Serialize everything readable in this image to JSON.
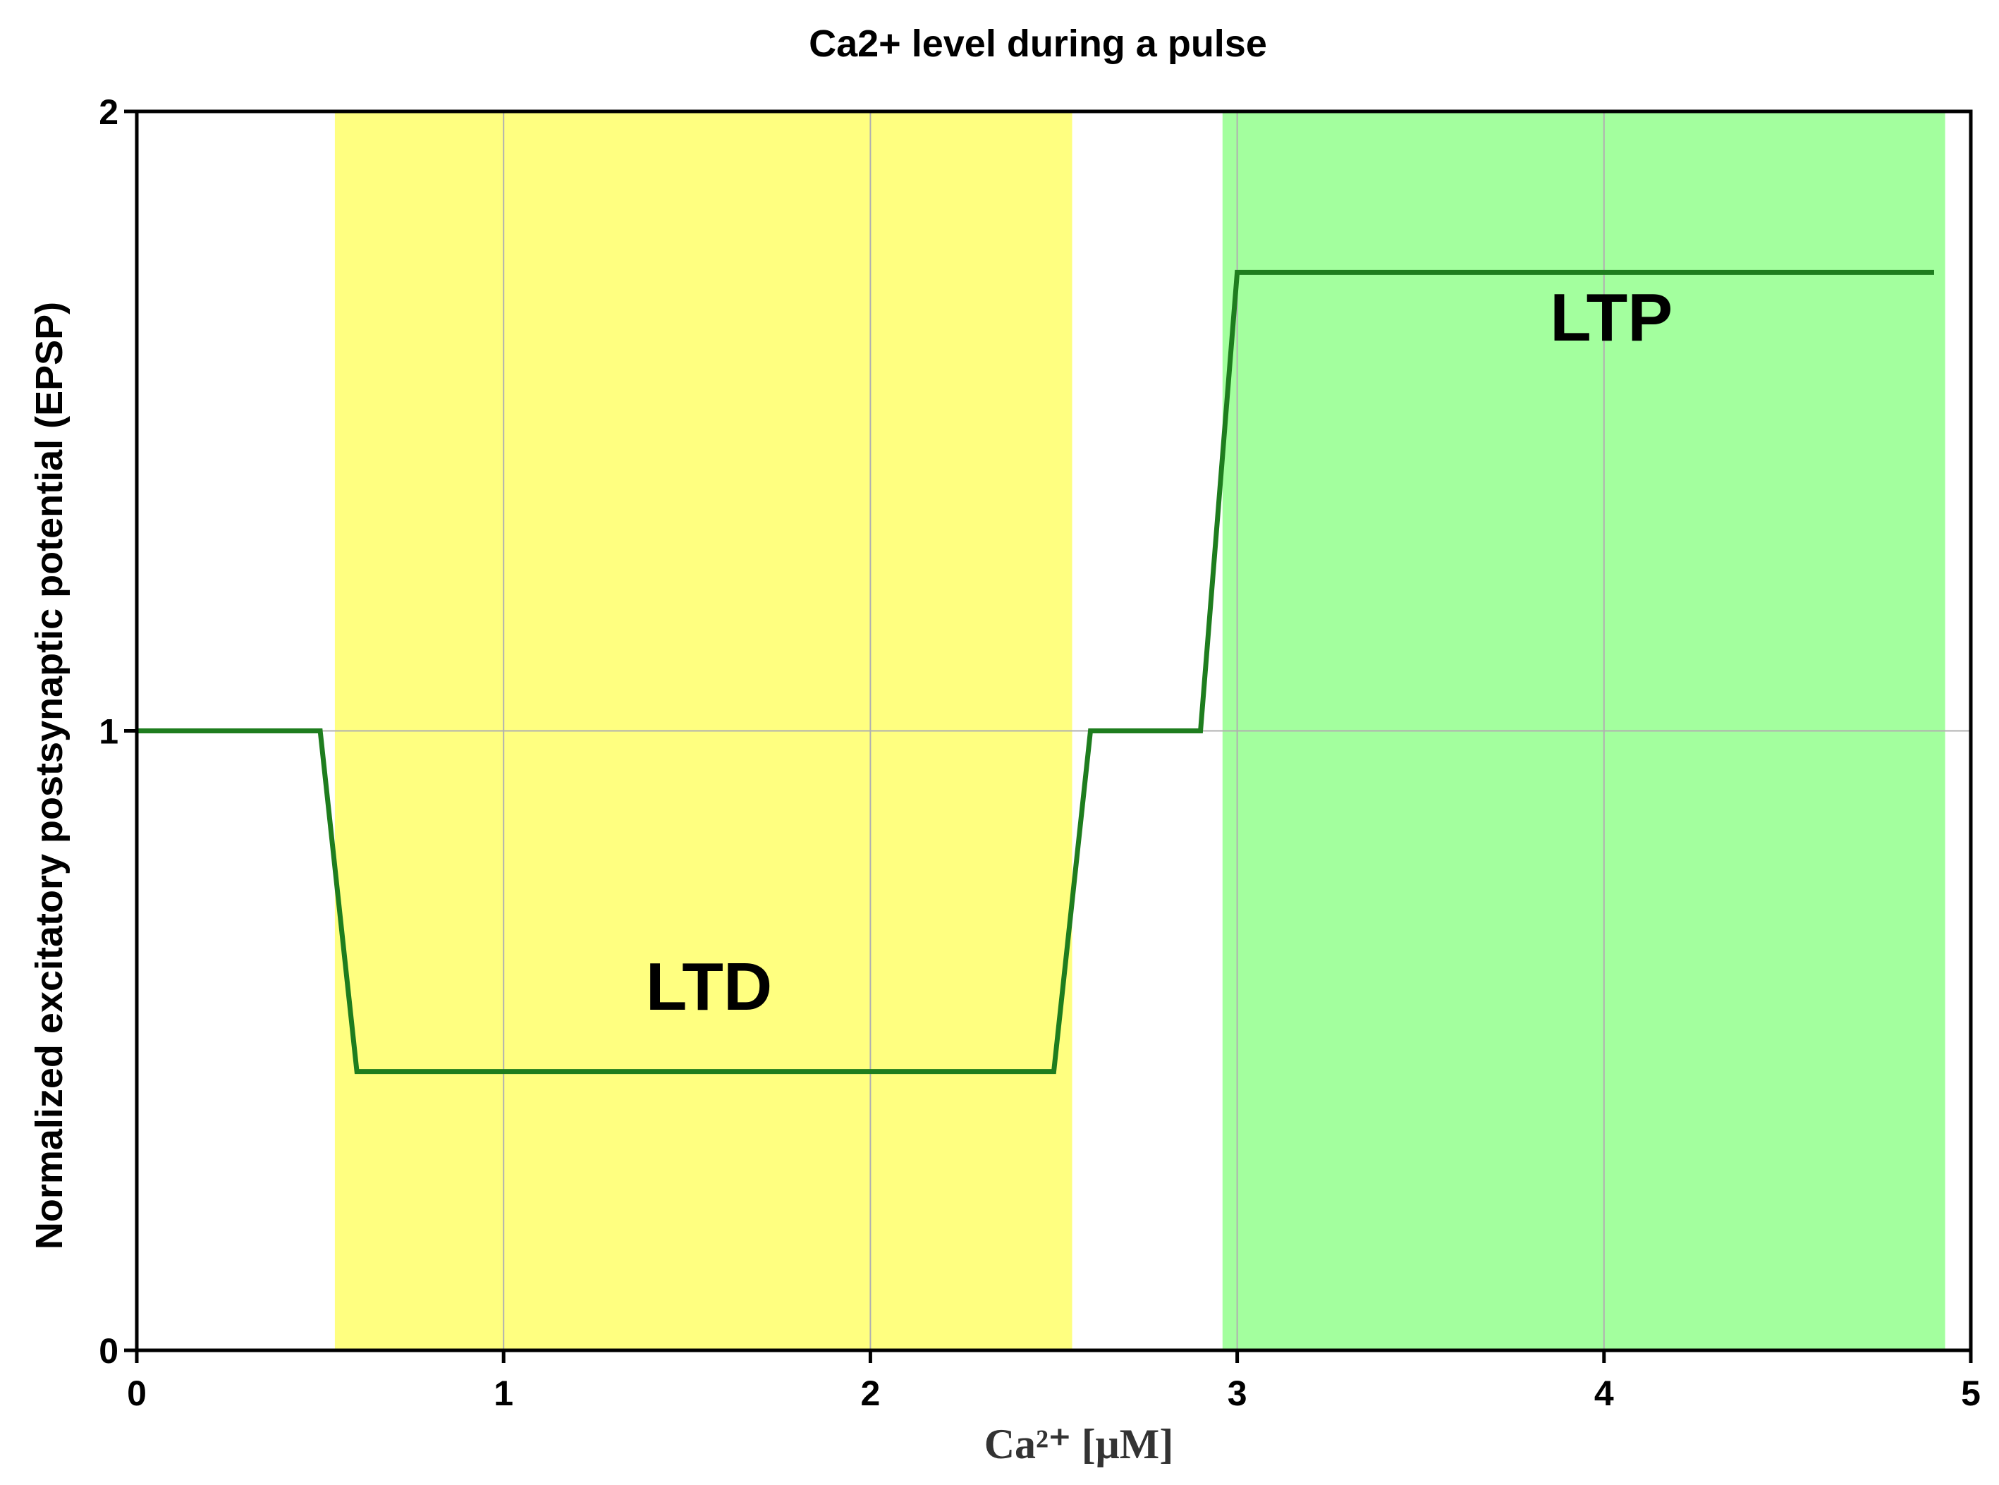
{
  "chart_data": {
    "type": "line",
    "title": "Ca2+ level during a pulse",
    "xlabel": "Ca²⁺ [μM]",
    "ylabel": "Normalized excitatory postsynaptic potential (EPSP)",
    "xlim": [
      0,
      5
    ],
    "ylim": [
      0,
      2
    ],
    "xticks": [
      0,
      1,
      2,
      3,
      4,
      5
    ],
    "yticks": [
      0,
      1,
      2
    ],
    "grid": true,
    "series": [
      {
        "color": "#1e7d1e",
        "x": [
          0,
          0.5,
          0.6,
          2.5,
          2.6,
          2.9,
          3.0,
          4.9
        ],
        "y": [
          1.0,
          1.0,
          0.45,
          0.45,
          1.0,
          1.0,
          1.74,
          1.74
        ]
      }
    ],
    "regions": [
      {
        "label": "LTD",
        "x_start": 0.54,
        "x_end": 2.55,
        "color": "#ffff80",
        "label_x": 1.56,
        "label_y": 0.55
      },
      {
        "label": "LTP",
        "x_start": 2.96,
        "x_end": 4.93,
        "color": "#a3ff9e",
        "label_x": 4.02,
        "label_y": 1.63
      }
    ]
  }
}
